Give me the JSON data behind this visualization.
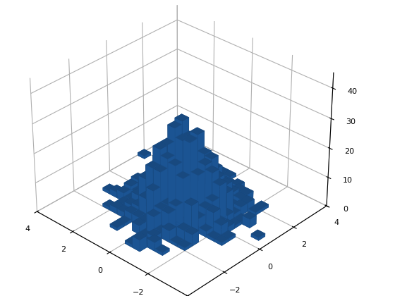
{
  "seed": 42,
  "n_samples": 1000,
  "n_bins": 20,
  "x_range": [
    -4,
    4
  ],
  "y_range": [
    -4,
    4
  ],
  "bar_color": "#1f5fa6",
  "bar_edge_color": "#1a4f8a",
  "bar_alpha": 1.0,
  "elev": 32,
  "azim": -47,
  "zlim": [
    0,
    45
  ],
  "z_ticks": [
    0,
    10,
    20,
    30,
    40
  ],
  "figsize": [
    5.6,
    4.2
  ],
  "dpi": 100,
  "background_color": "#ffffff"
}
